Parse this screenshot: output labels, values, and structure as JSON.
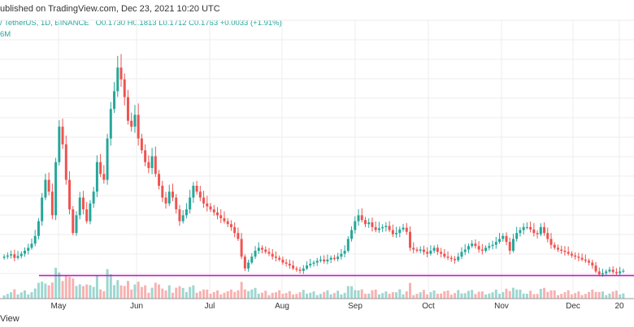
{
  "header": {
    "published": "ublished on TradingView.com, Dec 23, 2021 10:20 UTC",
    "symbol": "/ TetherUS, 1D, BINANCE",
    "ohlc": "O0.1730  H0.1813  L0.1712  C0.1763  +0.0033 (+1.91%)",
    "volume": "6M"
  },
  "footer": {
    "brand": "View"
  },
  "colors": {
    "up": "#26a69a",
    "down": "#ef5350",
    "line": "#c71ac7",
    "grid": "#eeeeee"
  },
  "chart_data": {
    "type": "candlestick",
    "x_ticks": [
      "May",
      "Jun",
      "Jul",
      "Aug",
      "Sep",
      "Oct",
      "Nov",
      "Dec",
      "20"
    ],
    "support_level": 0.168,
    "ylim": [
      0.14,
      0.6
    ],
    "candles_close": [
      0.2,
      0.202,
      0.204,
      0.198,
      0.201,
      0.205,
      0.21,
      0.215,
      0.222,
      0.235,
      0.26,
      0.3,
      0.33,
      0.31,
      0.27,
      0.36,
      0.42,
      0.39,
      0.33,
      0.28,
      0.24,
      0.27,
      0.3,
      0.28,
      0.26,
      0.29,
      0.31,
      0.36,
      0.34,
      0.33,
      0.4,
      0.45,
      0.48,
      0.52,
      0.5,
      0.47,
      0.43,
      0.42,
      0.44,
      0.4,
      0.38,
      0.36,
      0.35,
      0.37,
      0.34,
      0.32,
      0.3,
      0.29,
      0.31,
      0.3,
      0.28,
      0.26,
      0.27,
      0.28,
      0.3,
      0.32,
      0.31,
      0.3,
      0.29,
      0.285,
      0.28,
      0.275,
      0.27,
      0.265,
      0.26,
      0.255,
      0.25,
      0.24,
      0.23,
      0.2,
      0.18,
      0.19,
      0.2,
      0.21,
      0.215,
      0.212,
      0.208,
      0.205,
      0.2,
      0.198,
      0.195,
      0.19,
      0.188,
      0.185,
      0.18,
      0.178,
      0.176,
      0.18,
      0.185,
      0.188,
      0.19,
      0.193,
      0.195,
      0.192,
      0.195,
      0.198,
      0.196,
      0.2,
      0.205,
      0.21,
      0.23,
      0.245,
      0.26,
      0.27,
      0.262,
      0.255,
      0.258,
      0.25,
      0.245,
      0.248,
      0.25,
      0.252,
      0.245,
      0.238,
      0.24,
      0.246,
      0.249,
      0.242,
      0.215,
      0.212,
      0.21,
      0.212,
      0.208,
      0.205,
      0.21,
      0.215,
      0.208,
      0.205,
      0.2,
      0.198,
      0.196,
      0.194,
      0.2,
      0.208,
      0.212,
      0.218,
      0.222,
      0.218,
      0.212,
      0.21,
      0.215,
      0.218,
      0.22,
      0.225,
      0.23,
      0.235,
      0.225,
      0.21,
      0.23,
      0.24,
      0.245,
      0.25,
      0.25,
      0.246,
      0.24,
      0.238,
      0.25,
      0.24,
      0.23,
      0.22,
      0.215,
      0.212,
      0.21,
      0.208,
      0.205,
      0.202,
      0.2,
      0.198,
      0.195,
      0.193,
      0.19,
      0.185,
      0.175,
      0.17,
      0.172,
      0.175,
      0.178,
      0.174,
      0.172,
      0.175,
      0.176
    ]
  }
}
